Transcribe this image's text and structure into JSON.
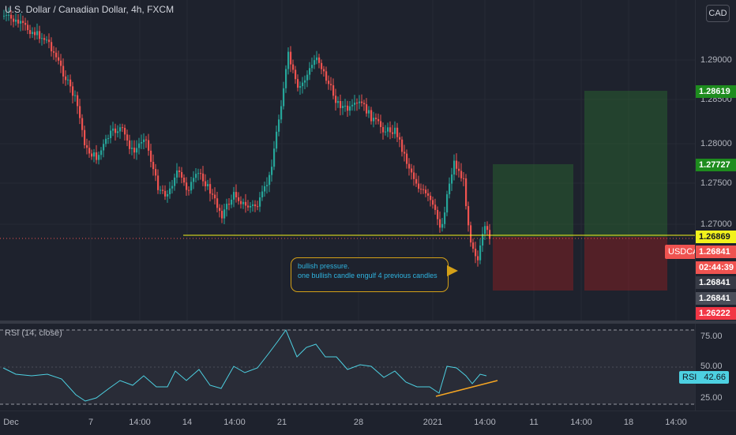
{
  "chart_header": {
    "title": "U.S. Dollar / Canadian Dollar, 4h, FXCM"
  },
  "currency_button": "CAD",
  "price_axis": {
    "ticks": [
      "1.29000",
      "1.28500",
      "1.28000",
      "1.27500",
      "1.27000"
    ],
    "labels": {
      "take_profit_2": {
        "value": "1.28619",
        "color": "#1e8c1e"
      },
      "take_profit_1": {
        "value": "1.27727",
        "color": "#1e8c1e"
      },
      "support_line": {
        "value": "1.26869",
        "color": "#f2f21c"
      },
      "last_price": {
        "value": "1.26841",
        "color": "#ef5350"
      },
      "countdown": {
        "value": "02:44:39",
        "color": "#ef5350"
      },
      "bid_1": {
        "value": "1.26841",
        "color": "#363a45"
      },
      "bid_2": {
        "value": "1.26841",
        "color": "#4a4e59"
      },
      "stop_loss": {
        "value": "1.26222",
        "color": "#f23645"
      }
    }
  },
  "symbol_badge": "USDCAD",
  "annotation": {
    "line1": "bullish pressure.",
    "line2": "one bullish candle engulf 4 previous candles"
  },
  "rsi": {
    "title": "RSI (14, close)",
    "ticks": [
      "75.00",
      "50.00",
      "25.00"
    ],
    "badge_label": "RSI",
    "badge_value": "42.66"
  },
  "time_axis": {
    "ticks": [
      "Dec",
      "7",
      "14:00",
      "14",
      "14:00",
      "21",
      "28",
      "2021",
      "14:00",
      "11",
      "14:00",
      "18",
      "14:00"
    ]
  },
  "colors": {
    "bull": "#26a69a",
    "bear": "#ef5350",
    "background": "#1e222d",
    "support_line": "#f2f21c",
    "rsi_line": "#4dd0e1",
    "divergence_line": "#f5a623"
  }
}
